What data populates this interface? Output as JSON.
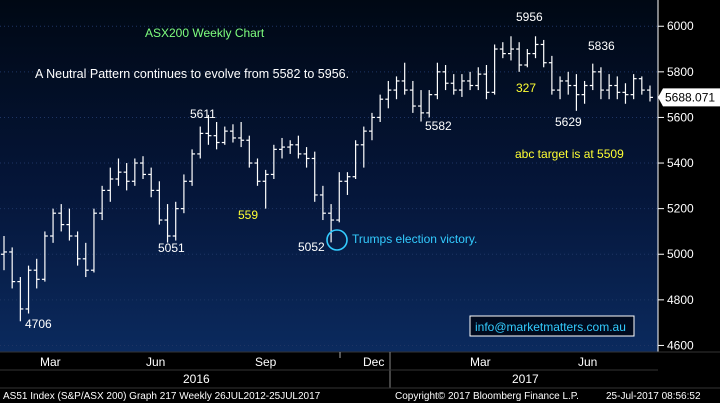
{
  "chart_data": {
    "type": "ohlc",
    "title": "ASX200 Weekly Chart",
    "subtitle": "A Neutral Pattern continues to evolve from 5582 to 5956.",
    "ylim": [
      4580,
      6080
    ],
    "yticks": [
      4600,
      4800,
      5000,
      5200,
      5400,
      5600,
      5800,
      6000
    ],
    "ytick_labels": [
      "4600",
      "4800",
      "5000",
      "5200",
      "5400",
      "5600",
      "5800",
      "6000"
    ],
    "x_month_labels": [
      "Mar",
      "Jun",
      "Sep",
      "Dec",
      "Mar",
      "Jun"
    ],
    "x_year_labels": [
      "2016",
      "2017"
    ],
    "last_price_label": "5688.071",
    "series": [
      {
        "o": 5000,
        "h": 5080,
        "l": 4930,
        "c": 5010
      },
      {
        "o": 5010,
        "h": 5030,
        "l": 4850,
        "c": 4880
      },
      {
        "o": 4880,
        "h": 4900,
        "l": 4706,
        "c": 4760
      },
      {
        "o": 4760,
        "h": 4950,
        "l": 4740,
        "c": 4930
      },
      {
        "o": 4930,
        "h": 4980,
        "l": 4850,
        "c": 4890
      },
      {
        "o": 4890,
        "h": 5100,
        "l": 4880,
        "c": 5080
      },
      {
        "o": 5080,
        "h": 5200,
        "l": 5050,
        "c": 5180
      },
      {
        "o": 5180,
        "h": 5220,
        "l": 5100,
        "c": 5130
      },
      {
        "o": 5130,
        "h": 5200,
        "l": 5060,
        "c": 5080
      },
      {
        "o": 5080,
        "h": 5100,
        "l": 4950,
        "c": 4980
      },
      {
        "o": 4980,
        "h": 5050,
        "l": 4900,
        "c": 4930
      },
      {
        "o": 4930,
        "h": 5200,
        "l": 4920,
        "c": 5180
      },
      {
        "o": 5180,
        "h": 5300,
        "l": 5150,
        "c": 5280
      },
      {
        "o": 5280,
        "h": 5380,
        "l": 5230,
        "c": 5330
      },
      {
        "o": 5330,
        "h": 5420,
        "l": 5300,
        "c": 5360
      },
      {
        "o": 5360,
        "h": 5400,
        "l": 5280,
        "c": 5320
      },
      {
        "o": 5320,
        "h": 5420,
        "l": 5300,
        "c": 5400
      },
      {
        "o": 5400,
        "h": 5430,
        "l": 5330,
        "c": 5350
      },
      {
        "o": 5350,
        "h": 5380,
        "l": 5250,
        "c": 5280
      },
      {
        "o": 5280,
        "h": 5320,
        "l": 5130,
        "c": 5150
      },
      {
        "o": 5150,
        "h": 5220,
        "l": 5051,
        "c": 5080
      },
      {
        "o": 5080,
        "h": 5230,
        "l": 5060,
        "c": 5200
      },
      {
        "o": 5200,
        "h": 5350,
        "l": 5180,
        "c": 5320
      },
      {
        "o": 5320,
        "h": 5460,
        "l": 5300,
        "c": 5440
      },
      {
        "o": 5440,
        "h": 5560,
        "l": 5420,
        "c": 5530
      },
      {
        "o": 5530,
        "h": 5611,
        "l": 5480,
        "c": 5520
      },
      {
        "o": 5520,
        "h": 5580,
        "l": 5460,
        "c": 5490
      },
      {
        "o": 5490,
        "h": 5560,
        "l": 5480,
        "c": 5540
      },
      {
        "o": 5540,
        "h": 5570,
        "l": 5490,
        "c": 5510
      },
      {
        "o": 5510,
        "h": 5580,
        "l": 5470,
        "c": 5500
      },
      {
        "o": 5500,
        "h": 5520,
        "l": 5380,
        "c": 5400
      },
      {
        "o": 5400,
        "h": 5420,
        "l": 5300,
        "c": 5320
      },
      {
        "o": 5320,
        "h": 5370,
        "l": 5200,
        "c": 5350
      },
      {
        "o": 5350,
        "h": 5480,
        "l": 5330,
        "c": 5460
      },
      {
        "o": 5460,
        "h": 5510,
        "l": 5420,
        "c": 5470
      },
      {
        "o": 5470,
        "h": 5500,
        "l": 5440,
        "c": 5480
      },
      {
        "o": 5480,
        "h": 5520,
        "l": 5420,
        "c": 5440
      },
      {
        "o": 5440,
        "h": 5470,
        "l": 5380,
        "c": 5420
      },
      {
        "o": 5420,
        "h": 5450,
        "l": 5230,
        "c": 5260
      },
      {
        "o": 5260,
        "h": 5300,
        "l": 5150,
        "c": 5180
      },
      {
        "o": 5180,
        "h": 5220,
        "l": 5052,
        "c": 5150
      },
      {
        "o": 5150,
        "h": 5360,
        "l": 5140,
        "c": 5320
      },
      {
        "o": 5320,
        "h": 5360,
        "l": 5260,
        "c": 5340
      },
      {
        "o": 5340,
        "h": 5500,
        "l": 5330,
        "c": 5480
      },
      {
        "o": 5480,
        "h": 5560,
        "l": 5380,
        "c": 5540
      },
      {
        "o": 5540,
        "h": 5620,
        "l": 5500,
        "c": 5600
      },
      {
        "o": 5600,
        "h": 5700,
        "l": 5580,
        "c": 5680
      },
      {
        "o": 5680,
        "h": 5760,
        "l": 5640,
        "c": 5720
      },
      {
        "o": 5720,
        "h": 5780,
        "l": 5680,
        "c": 5760
      },
      {
        "o": 5760,
        "h": 5840,
        "l": 5700,
        "c": 5720
      },
      {
        "o": 5720,
        "h": 5760,
        "l": 5620,
        "c": 5650
      },
      {
        "o": 5650,
        "h": 5720,
        "l": 5582,
        "c": 5620
      },
      {
        "o": 5620,
        "h": 5720,
        "l": 5600,
        "c": 5700
      },
      {
        "o": 5700,
        "h": 5840,
        "l": 5680,
        "c": 5800
      },
      {
        "o": 5800,
        "h": 5830,
        "l": 5720,
        "c": 5750
      },
      {
        "o": 5750,
        "h": 5790,
        "l": 5700,
        "c": 5720
      },
      {
        "o": 5720,
        "h": 5790,
        "l": 5690,
        "c": 5760
      },
      {
        "o": 5760,
        "h": 5800,
        "l": 5720,
        "c": 5740
      },
      {
        "o": 5740,
        "h": 5820,
        "l": 5720,
        "c": 5790
      },
      {
        "o": 5790,
        "h": 5830,
        "l": 5680,
        "c": 5710
      },
      {
        "o": 5710,
        "h": 5920,
        "l": 5700,
        "c": 5900
      },
      {
        "o": 5900,
        "h": 5930,
        "l": 5860,
        "c": 5880
      },
      {
        "o": 5880,
        "h": 5956,
        "l": 5850,
        "c": 5900
      },
      {
        "o": 5900,
        "h": 5930,
        "l": 5800,
        "c": 5830
      },
      {
        "o": 5830,
        "h": 5900,
        "l": 5820,
        "c": 5880
      },
      {
        "o": 5880,
        "h": 5956,
        "l": 5860,
        "c": 5920
      },
      {
        "o": 5920,
        "h": 5940,
        "l": 5820,
        "c": 5840
      },
      {
        "o": 5840,
        "h": 5870,
        "l": 5700,
        "c": 5720
      },
      {
        "o": 5720,
        "h": 5780,
        "l": 5680,
        "c": 5760
      },
      {
        "o": 5760,
        "h": 5800,
        "l": 5700,
        "c": 5740
      },
      {
        "o": 5740,
        "h": 5790,
        "l": 5629,
        "c": 5700
      },
      {
        "o": 5700,
        "h": 5760,
        "l": 5660,
        "c": 5740
      },
      {
        "o": 5740,
        "h": 5836,
        "l": 5720,
        "c": 5800
      },
      {
        "o": 5800,
        "h": 5820,
        "l": 5680,
        "c": 5720
      },
      {
        "o": 5720,
        "h": 5790,
        "l": 5680,
        "c": 5740
      },
      {
        "o": 5740,
        "h": 5780,
        "l": 5680,
        "c": 5710
      },
      {
        "o": 5710,
        "h": 5750,
        "l": 5660,
        "c": 5700
      },
      {
        "o": 5700,
        "h": 5790,
        "l": 5680,
        "c": 5770
      },
      {
        "o": 5770,
        "h": 5780,
        "l": 5700,
        "c": 5720
      },
      {
        "o": 5720,
        "h": 5740,
        "l": 5670,
        "c": 5688
      }
    ],
    "annotations": [
      {
        "text": "4706",
        "price": 4706,
        "bar": 2
      },
      {
        "text": "5051",
        "price": 5051,
        "bar": 20
      },
      {
        "text": "5611",
        "price": 5611,
        "bar": 25
      },
      {
        "text": "559",
        "price": 5559,
        "bar": 29
      },
      {
        "text": "5052",
        "price": 5052,
        "bar": 40
      },
      {
        "text": "5582",
        "price": 5582,
        "bar": 51
      },
      {
        "text": "327",
        "price": 5627,
        "bar": 62
      },
      {
        "text": "5956",
        "price": 5956,
        "bar": 62
      },
      {
        "text": "5629",
        "price": 5629,
        "bar": 70
      },
      {
        "text": "5836",
        "price": 5836,
        "bar": 72
      },
      {
        "text": "Trumps election victory.",
        "price": 5050,
        "bar": 41
      },
      {
        "text": "abc target is at 5509",
        "price": 5509,
        "bar": 68
      }
    ],
    "watermark": "info@marketmatters.com.au",
    "footer": {
      "left": "AS51 Index (S&P/ASX 200) Graph 217  Weekly 26JUL2012-25JUL2017",
      "center": "Copyright© 2017 Bloomberg Finance L.P.",
      "right": "25-Jul-2017 08:56:52"
    },
    "colors": {
      "background": "#000000",
      "panel": "#0a1a3a",
      "bars": "#ffffff",
      "title": "#7fff7f",
      "annotation_yellow": "#ffff33",
      "annotation_cyan": "#33ccff",
      "axis_text": "#ffffff"
    }
  }
}
